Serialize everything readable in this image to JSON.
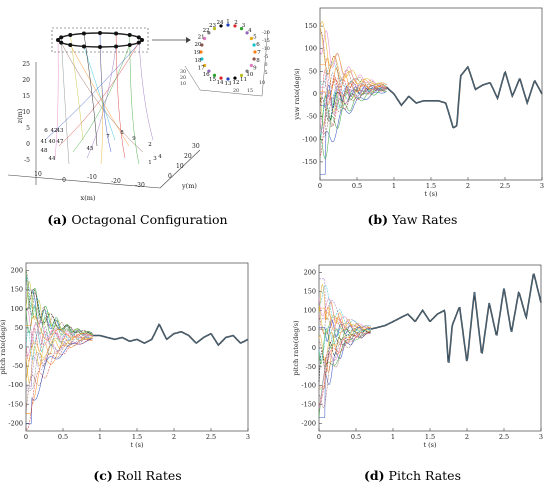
{
  "figure": {
    "captions": [
      {
        "tag": "(a)",
        "text": "Octagonal Configuration"
      },
      {
        "tag": "(b)",
        "text": "Yaw Rates"
      },
      {
        "tag": "(c)",
        "text": "Roll Rates"
      },
      {
        "tag": "(d)",
        "text": "Pitch Rates"
      }
    ]
  },
  "chart_data": [
    {
      "id": "a",
      "type": "scatter",
      "title": "",
      "xlabel": "x(m)",
      "ylabel": "y(m)",
      "zlabel": "z(m)",
      "x_ticks": [
        "-10",
        "-20",
        "-30",
        "0",
        "10"
      ],
      "y_ticks": [
        "0",
        "10",
        "20",
        "30"
      ],
      "z_ticks": [
        "25",
        "20",
        "15",
        "10",
        "5",
        "0",
        "-5"
      ],
      "agent_labels_ground": [
        "6",
        "42",
        "43",
        "41",
        "40",
        "47",
        "48",
        "44",
        "45",
        "7",
        "8",
        "9",
        "2",
        "3",
        "4",
        "1"
      ],
      "inset_labels": [
        "1",
        "2",
        "3",
        "4",
        "5",
        "6",
        "7",
        "8",
        "9",
        "10",
        "11",
        "12",
        "13",
        "14",
        "15",
        "16",
        "17",
        "18",
        "19",
        "20",
        "21",
        "22",
        "23",
        "24"
      ],
      "inset_ticks": [
        "30",
        "20",
        "10",
        "-20",
        "-15",
        "-10",
        "-5",
        "0",
        "5",
        "10",
        "15",
        "20"
      ]
    },
    {
      "id": "b",
      "type": "line",
      "title": "",
      "xlabel": "t (s)",
      "ylabel": "yaw rate(deg/s)",
      "xlim": [
        0,
        3
      ],
      "ylim": [
        -190,
        190
      ],
      "x_ticks": [
        "0",
        "0.5",
        "1",
        "1.5",
        "2",
        "2.5",
        "3"
      ],
      "y_ticks": [
        "150",
        "100",
        "50",
        "0",
        "-50",
        "-100",
        "-150"
      ],
      "consensus": {
        "x": [
          0.9,
          1.0,
          1.1,
          1.2,
          1.3,
          1.4,
          1.5,
          1.6,
          1.7,
          1.8,
          1.85,
          1.9,
          2.0,
          2.1,
          2.2,
          2.3,
          2.4,
          2.5,
          2.6,
          2.7,
          2.8,
          2.9,
          3.0
        ],
        "y": [
          15,
          0,
          -25,
          -5,
          -20,
          -15,
          -15,
          -15,
          -20,
          -75,
          -70,
          40,
          60,
          10,
          20,
          25,
          -10,
          50,
          -5,
          35,
          -20,
          30,
          0
        ]
      }
    },
    {
      "id": "c",
      "type": "line",
      "title": "",
      "xlabel": "t (s)",
      "ylabel": "pitch rate(deg/s)",
      "xlim": [
        0,
        3
      ],
      "ylim": [
        -220,
        220
      ],
      "x_ticks": [
        "0",
        "0.5",
        "1",
        "1.5",
        "2",
        "2.5",
        "3"
      ],
      "y_ticks": [
        "200",
        "150",
        "100",
        "50",
        "0",
        "-50",
        "-100",
        "-150",
        "-200"
      ],
      "consensus": {
        "x": [
          0.9,
          1.0,
          1.1,
          1.2,
          1.3,
          1.4,
          1.5,
          1.6,
          1.7,
          1.8,
          1.9,
          2.0,
          2.1,
          2.2,
          2.3,
          2.4,
          2.5,
          2.6,
          2.7,
          2.8,
          2.9,
          3.0
        ],
        "y": [
          30,
          30,
          25,
          20,
          25,
          15,
          20,
          10,
          20,
          60,
          20,
          35,
          40,
          30,
          10,
          25,
          35,
          5,
          25,
          30,
          10,
          20
        ]
      }
    },
    {
      "id": "d",
      "type": "line",
      "title": "",
      "xlabel": "t (s)",
      "ylabel": "pitch rate(deg/s)",
      "xlim": [
        0,
        3
      ],
      "ylim": [
        -220,
        220
      ],
      "x_ticks": [
        "0",
        "0.5",
        "1",
        "1.5",
        "2",
        "2.5",
        "3"
      ],
      "y_ticks": [
        "200",
        "150",
        "100",
        "50",
        "0",
        "-50",
        "-100",
        "-150",
        "-200"
      ],
      "consensus": {
        "x": [
          0.7,
          0.8,
          0.9,
          1.0,
          1.1,
          1.2,
          1.3,
          1.4,
          1.5,
          1.6,
          1.7,
          1.75,
          1.8,
          1.9,
          2.0,
          2.1,
          2.2,
          2.3,
          2.4,
          2.5,
          2.6,
          2.7,
          2.8,
          2.9,
          3.0
        ],
        "y": [
          50,
          55,
          60,
          70,
          80,
          90,
          70,
          100,
          70,
          90,
          100,
          -50,
          60,
          110,
          -40,
          150,
          -20,
          120,
          30,
          160,
          40,
          150,
          80,
          200,
          120
        ]
      }
    }
  ]
}
